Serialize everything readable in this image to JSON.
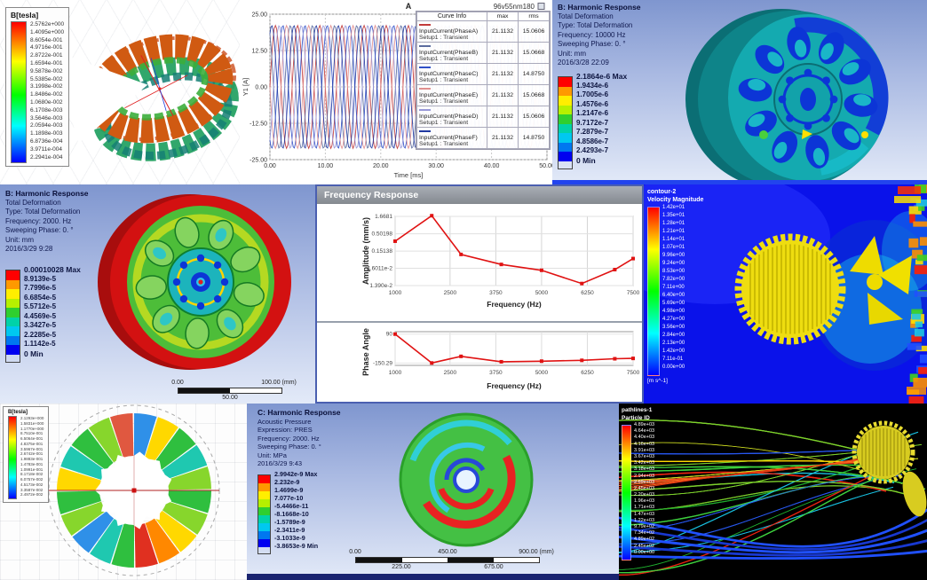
{
  "colors": {
    "ansys_bands": [
      "#ff0000",
      "#ff9900",
      "#ffee00",
      "#b6f000",
      "#2fcf2f",
      "#00d2a8",
      "#00c8f0",
      "#0077f0",
      "#0000f0"
    ],
    "line_red": "#e01212",
    "phase_colors": [
      "#c23b3b",
      "#5b6b9e",
      "#3050c8",
      "#e08f8f",
      "#9898d8",
      "#2038a0"
    ]
  },
  "panels": {
    "flux_top": {
      "legend_title": "B[tesla]",
      "values": [
        "2.5762e+000",
        "1.4095e+000",
        "8.6054e-001",
        "4.9716e-001",
        "2.8722e-001",
        "1.6594e-001",
        "9.5878e-002",
        "5.5385e-002",
        "3.1998e-002",
        "1.8486e-002",
        "1.0680e-002",
        "6.1708e-003",
        "3.5646e-003",
        "2.0594e-003",
        "1.1898e-003",
        "6.8736e-004",
        "3.9711e-004",
        "2.2941e-004"
      ]
    },
    "current_plot": {
      "title": "A",
      "corner_label": "96v55nm180",
      "ylabel": "Y1 [A]",
      "xlabel": "Time [ms]",
      "yticks": [
        "25.00",
        "12.50",
        "0.00",
        "-12.50",
        "-25.00"
      ],
      "xticks": [
        "0.00",
        "10.00",
        "20.00",
        "30.00",
        "40.00",
        "50.00"
      ],
      "legend_headers": [
        "Curve Info",
        "max",
        "rms"
      ],
      "legend_rows": [
        {
          "name": "InputCurrent(PhaseA)",
          "setup": "Setup1 : Transient",
          "max": "21.1132",
          "rms": "15.0606"
        },
        {
          "name": "InputCurrent(PhaseB)",
          "setup": "Setup1 : Transient",
          "max": "21.1132",
          "rms": "15.0668"
        },
        {
          "name": "InputCurrent(PhaseC)",
          "setup": "Setup1 : Transient",
          "max": "21.1132",
          "rms": "14.8750"
        },
        {
          "name": "InputCurrent(PhaseE)",
          "setup": "Setup1 : Transient",
          "max": "21.1132",
          "rms": "15.0668"
        },
        {
          "name": "InputCurrent(PhaseD)",
          "setup": "Setup1 : Transient",
          "max": "21.1132",
          "rms": "15.0606"
        },
        {
          "name": "InputCurrent(PhaseF)",
          "setup": "Setup1 : Transient",
          "max": "21.1132",
          "rms": "14.8750"
        }
      ]
    },
    "harmonic_top": {
      "info": [
        "B: Harmonic Response",
        "Total Deformation",
        "Type: Total Deformation",
        "Frequency: 10000 Hz",
        "Sweeping Phase: 0. °",
        "Unit: mm",
        "2016/3/28 22:09"
      ],
      "scale": [
        "2.1864e-6 Max",
        "1.9434e-6",
        "1.7005e-6",
        "1.4576e-6",
        "1.2147e-6",
        "9.7172e-7",
        "7.2879e-7",
        "4.8586e-7",
        "2.4293e-7",
        "0 Min"
      ]
    },
    "harmonic_mid": {
      "info": [
        "B: Harmonic Response",
        "Total Deformation",
        "Type: Total Deformation",
        "Frequency: 2000. Hz",
        "Sweeping Phase: 0. °",
        "Unit: mm",
        "2016/3/29 9:28"
      ],
      "scale": [
        "0.00010028 Max",
        "8.9139e-5",
        "7.7996e-5",
        "6.6854e-5",
        "5.5712e-5",
        "4.4569e-5",
        "3.3427e-5",
        "2.2285e-5",
        "1.1142e-5",
        "0 Min"
      ],
      "ruler_top": [
        "0.00",
        "100.00 (mm)"
      ],
      "ruler_bottom": [
        "50.00"
      ]
    },
    "freq_response": {
      "window_title": "Frequency Response",
      "amp_ylabel": "Amplitude (mm/s)",
      "phase_ylabel": "Phase Angle",
      "xlabel": "Frequency (Hz)"
    },
    "cfd": {
      "header": [
        "contour-2",
        "Velocity Magnitude"
      ],
      "unit": "[m s^-1]",
      "values": [
        "1.42e+01",
        "1.35e+01",
        "1.28e+01",
        "1.21e+01",
        "1.14e+01",
        "1.07e+01",
        "9.96e+00",
        "9.24e+00",
        "8.53e+00",
        "7.82e+00",
        "7.11e+00",
        "6.40e+00",
        "5.69e+00",
        "4.98e+00",
        "4.27e+00",
        "3.56e+00",
        "2.84e+00",
        "2.13e+00",
        "1.42e+00",
        "7.11e-01",
        "0.00e+00"
      ]
    },
    "flux_bottom": {
      "legend_title": "B[tesla]",
      "values": [
        "2.1293e+000",
        "1.5831e+000",
        "1.1770e+000",
        "8.7510e-001",
        "6.5064e-001",
        "4.8375e-001",
        "3.5967e-001",
        "2.6742e-001",
        "1.9883e-001",
        "1.4783e-001",
        "1.0991e-001",
        "8.1718e-002",
        "6.0757e-002",
        "4.5173e-002",
        "3.3587e-002",
        "2.4972e-002"
      ]
    },
    "acoustic": {
      "info": [
        "C: Harmonic Response",
        "Acoustic Pressure",
        "Expression: PRES",
        "Frequency: 2000. Hz",
        "Sweeping Phase: 0. °",
        "Unit: MPa",
        "2016/3/29 9:43"
      ],
      "scale": [
        "2.9942e-9 Max",
        "2.232e-9",
        "1.4699e-9",
        "7.077e-10",
        "-5.4466e-11",
        "-8.1668e-10",
        "-1.5789e-9",
        "-2.3411e-9",
        "-3.1033e-9",
        "-3.8653e-9 Min"
      ],
      "ruler_top": [
        "0.00",
        "450.00",
        "900.00 (mm)"
      ],
      "ruler_bottom": [
        "225.00",
        "675.00"
      ]
    },
    "particles": {
      "header": [
        "pathlines-1",
        "Particle ID"
      ],
      "values": [
        "4.89e+03",
        "4.64e+03",
        "4.40e+03",
        "4.16e+03",
        "3.91e+03",
        "3.67e+03",
        "3.42e+03",
        "3.18e+03",
        "2.94e+03",
        "2.69e+03",
        "2.45e+03",
        "2.20e+03",
        "1.96e+03",
        "1.71e+03",
        "1.47e+03",
        "1.22e+03",
        "9.79e+02",
        "7.34e+02",
        "4.89e+02",
        "2.45e+02",
        "0.00e+00"
      ]
    }
  },
  "chart_data": [
    {
      "type": "line",
      "title": "A",
      "subtitle": "96v55nm180",
      "xlabel": "Time [ms]",
      "ylabel": "Y1 [A]",
      "xlim": [
        0,
        50
      ],
      "ylim": [
        -25,
        25
      ],
      "xticks": [
        0,
        10,
        20,
        30,
        40,
        50
      ],
      "yticks": [
        25,
        12.5,
        0,
        -12.5,
        -25
      ],
      "grid": true,
      "legend_position": "right",
      "waveform": {
        "kind": "sine",
        "amplitude": 21.1132,
        "period_ms": 4,
        "series": [
          {
            "name": "InputCurrent(PhaseA)",
            "phase_deg": 0,
            "max": 21.1132,
            "rms": 15.0606
          },
          {
            "name": "InputCurrent(PhaseB)",
            "phase_deg": 120,
            "max": 21.1132,
            "rms": 15.0668
          },
          {
            "name": "InputCurrent(PhaseC)",
            "phase_deg": 240,
            "max": 21.1132,
            "rms": 14.875
          },
          {
            "name": "InputCurrent(PhaseE)",
            "phase_deg": 180,
            "max": 21.1132,
            "rms": 15.0668
          },
          {
            "name": "InputCurrent(PhaseD)",
            "phase_deg": 300,
            "max": 21.1132,
            "rms": 15.0606
          },
          {
            "name": "InputCurrent(PhaseF)",
            "phase_deg": 60,
            "max": 21.1132,
            "rms": 14.875
          }
        ]
      }
    },
    {
      "type": "line",
      "title": "Frequency Response - Amplitude",
      "xlabel": "Frequency (Hz)",
      "ylabel": "Amplitude (mm/s)",
      "yscale": "log",
      "x": [
        1000,
        2000,
        2800,
        3900,
        5000,
        6100,
        7000,
        7500
      ],
      "y": [
        0.3,
        1.75,
        0.12,
        0.06,
        0.04,
        0.016,
        0.042,
        0.09
      ],
      "yticks": [
        "1.6681",
        "0.50198",
        "0.15138",
        "4.6011e-2",
        "1.390e-2"
      ],
      "xticks": [
        1000,
        2500,
        3750,
        5000,
        6250,
        7500
      ],
      "grid": true
    },
    {
      "type": "line",
      "title": "Frequency Response - Phase",
      "xlabel": "Frequency (Hz)",
      "ylabel": "Phase Angle",
      "x": [
        1000,
        2000,
        2800,
        3900,
        5000,
        6100,
        7000,
        7500
      ],
      "y": [
        90,
        -150,
        -95,
        -140,
        -135,
        -128,
        -115,
        -112
      ],
      "yticks": [
        "90",
        "-150.29"
      ],
      "ylim": [
        -170,
        110
      ],
      "xticks": [
        1000,
        2500,
        3750,
        5000,
        6250,
        7500
      ],
      "grid": true
    }
  ]
}
